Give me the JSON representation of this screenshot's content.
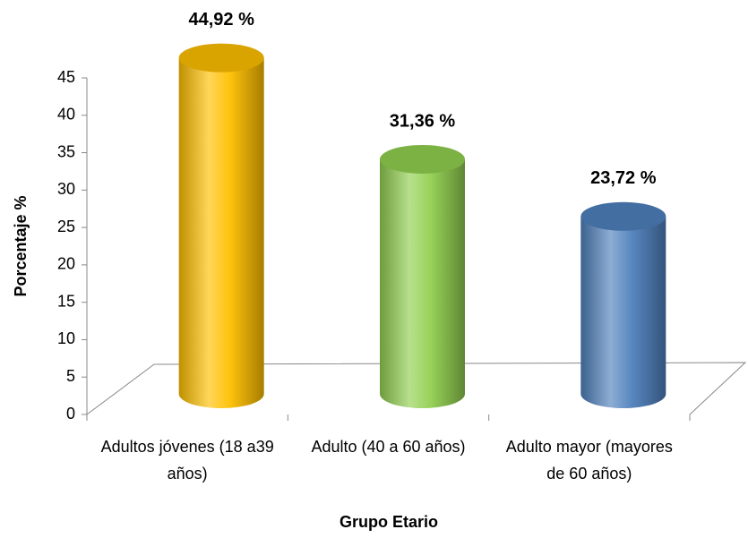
{
  "chart_data": {
    "type": "cylinder",
    "x_label": "Grupo Etario",
    "y_label": "Porcentaje %",
    "categories": [
      "Adultos jóvenes (18 a39 años)",
      "Adulto (40 a 60 años)",
      "Adulto mayor (mayores  de 60 años)"
    ],
    "values": [
      44.92,
      31.36,
      23.72
    ],
    "value_labels": [
      "44,92 %",
      "31,36 %",
      "23,72 %"
    ],
    "colors": [
      "#ffc000",
      "#92d050",
      "#4f81bd"
    ],
    "ylim": [
      0,
      45
    ],
    "yticks": [
      0,
      5,
      10,
      15,
      20,
      25,
      30,
      35,
      40,
      45
    ],
    "grid": false
  }
}
